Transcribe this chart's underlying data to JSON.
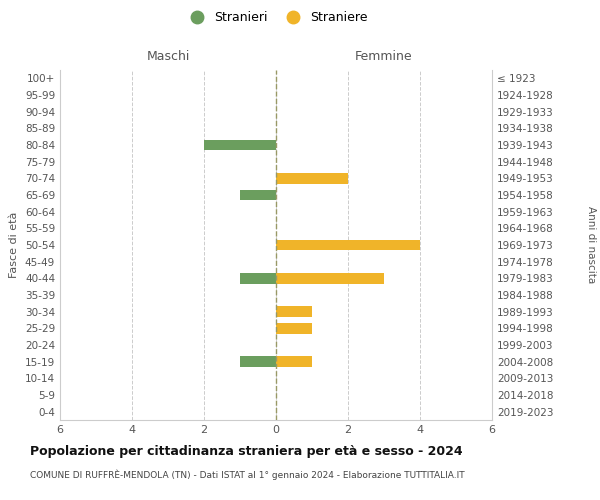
{
  "age_groups": [
    "100+",
    "95-99",
    "90-94",
    "85-89",
    "80-84",
    "75-79",
    "70-74",
    "65-69",
    "60-64",
    "55-59",
    "50-54",
    "45-49",
    "40-44",
    "35-39",
    "30-34",
    "25-29",
    "20-24",
    "15-19",
    "10-14",
    "5-9",
    "0-4"
  ],
  "birth_years": [
    "≤ 1923",
    "1924-1928",
    "1929-1933",
    "1934-1938",
    "1939-1943",
    "1944-1948",
    "1949-1953",
    "1954-1958",
    "1959-1963",
    "1964-1968",
    "1969-1973",
    "1974-1978",
    "1979-1983",
    "1984-1988",
    "1989-1993",
    "1994-1998",
    "1999-2003",
    "2004-2008",
    "2009-2013",
    "2014-2018",
    "2019-2023"
  ],
  "maschi": [
    0,
    0,
    0,
    0,
    2,
    0,
    0,
    1,
    0,
    0,
    0,
    0,
    1,
    0,
    0,
    0,
    0,
    1,
    0,
    0,
    0
  ],
  "femmine": [
    0,
    0,
    0,
    0,
    0,
    0,
    2,
    0,
    0,
    0,
    4,
    0,
    3,
    0,
    1,
    1,
    0,
    1,
    0,
    0,
    0
  ],
  "color_maschi": "#6b9e5e",
  "color_femmine": "#f0b429",
  "xlim": 6,
  "title": "Popolazione per cittadinanza straniera per età e sesso - 2024",
  "subtitle": "COMUNE DI RUFFRÈ-MENDOLA (TN) - Dati ISTAT al 1° gennaio 2024 - Elaborazione TUTTITALIA.IT",
  "legend_maschi": "Stranieri",
  "legend_femmine": "Straniere",
  "ylabel_left": "Fasce di età",
  "ylabel_right": "Anni di nascita",
  "xlabel_maschi": "Maschi",
  "xlabel_femmine": "Femmine",
  "background_color": "#ffffff",
  "grid_color": "#cccccc"
}
